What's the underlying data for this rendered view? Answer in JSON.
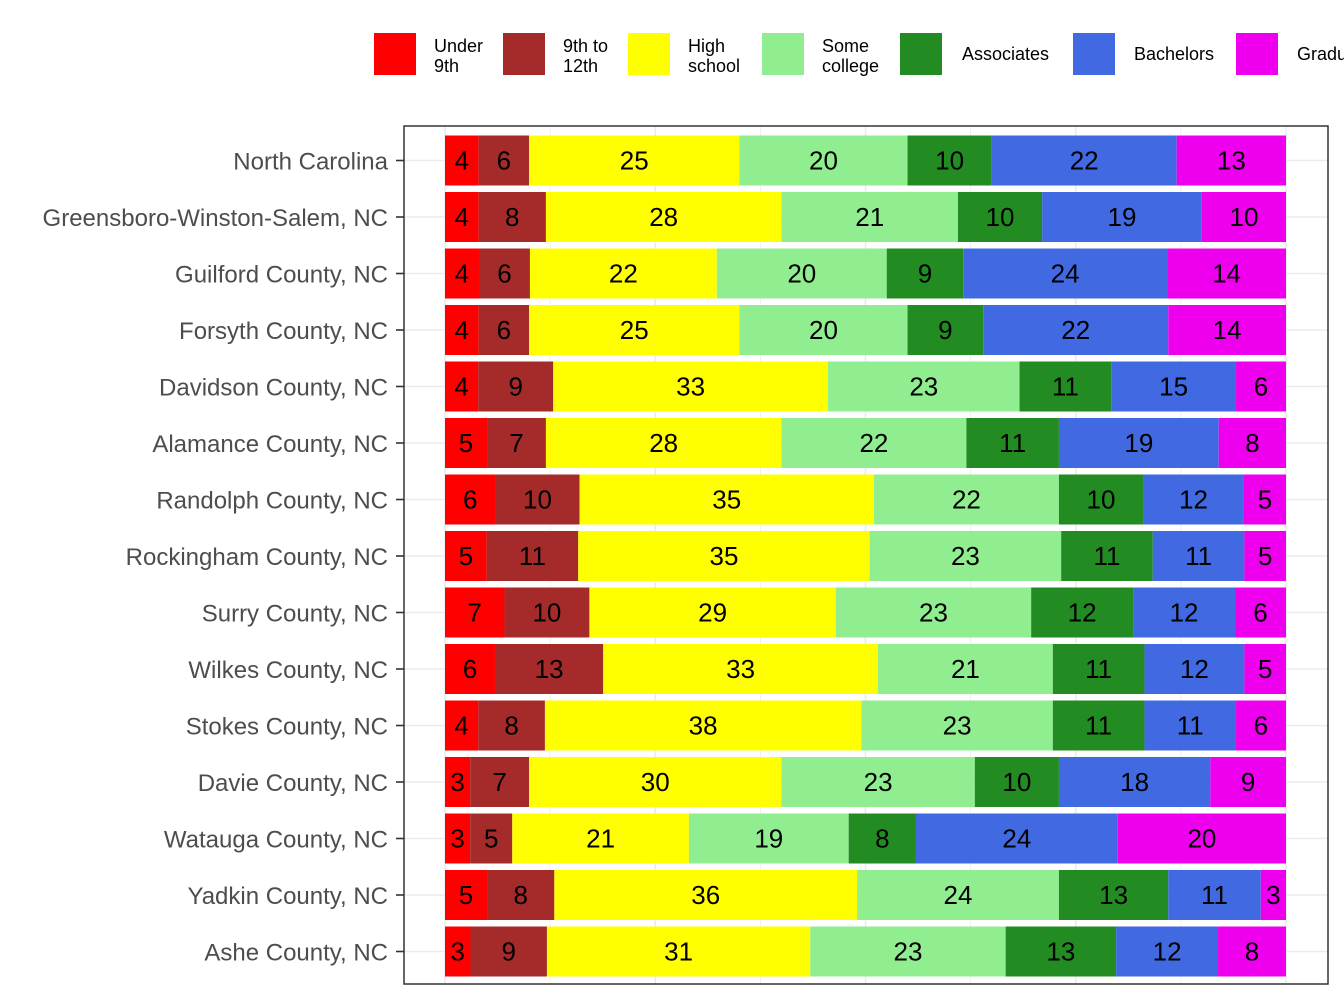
{
  "chart_data": {
    "type": "bar",
    "orientation": "horizontal",
    "stacked": true,
    "percent_stacked": true,
    "grid": true,
    "legend_position": "top",
    "title": "",
    "xlabel": "",
    "ylabel": "",
    "categories": [
      "North Carolina",
      "Greensboro-Winston-Salem, NC",
      "Guilford County, NC",
      "Forsyth County, NC",
      "Davidson County, NC",
      "Alamance County, NC",
      "Randolph County, NC",
      "Rockingham County, NC",
      "Surry County, NC",
      "Wilkes County, NC",
      "Stokes County, NC",
      "Davie County, NC",
      "Watauga County, NC",
      "Yadkin County, NC",
      "Ashe County, NC"
    ],
    "series": [
      {
        "key": "under9",
        "legend_lines": [
          "Under",
          "9th"
        ],
        "color": "#FF0000",
        "values": [
          4,
          4,
          4,
          4,
          4,
          5,
          6,
          5,
          7,
          6,
          4,
          3,
          3,
          5,
          3
        ]
      },
      {
        "key": "g9to12",
        "legend_lines": [
          "9th to",
          "12th"
        ],
        "color": "#A52A2A",
        "values": [
          6,
          8,
          6,
          6,
          9,
          7,
          10,
          11,
          10,
          13,
          8,
          7,
          5,
          8,
          9
        ]
      },
      {
        "key": "high",
        "legend_lines": [
          "High",
          "school"
        ],
        "color": "#FFFF00",
        "values": [
          25,
          28,
          22,
          25,
          33,
          28,
          35,
          35,
          29,
          33,
          38,
          30,
          21,
          36,
          31
        ]
      },
      {
        "key": "somecol",
        "legend_lines": [
          "Some",
          "college"
        ],
        "color": "#90EE90",
        "values": [
          20,
          21,
          20,
          20,
          23,
          22,
          22,
          23,
          23,
          21,
          23,
          23,
          19,
          24,
          23
        ]
      },
      {
        "key": "assoc",
        "legend_lines": [
          "Associates"
        ],
        "color": "#228B22",
        "values": [
          10,
          10,
          9,
          9,
          11,
          11,
          10,
          11,
          12,
          11,
          11,
          10,
          8,
          13,
          13
        ]
      },
      {
        "key": "bach",
        "legend_lines": [
          "Bachelors"
        ],
        "color": "#4169E1",
        "values": [
          22,
          19,
          24,
          22,
          15,
          19,
          12,
          11,
          12,
          12,
          11,
          18,
          24,
          11,
          12
        ]
      },
      {
        "key": "grad",
        "legend_lines": [
          "Gradu"
        ],
        "color": "#EE00EE",
        "values": [
          13,
          10,
          14,
          14,
          6,
          8,
          5,
          5,
          6,
          5,
          6,
          9,
          20,
          3,
          8
        ]
      }
    ]
  }
}
